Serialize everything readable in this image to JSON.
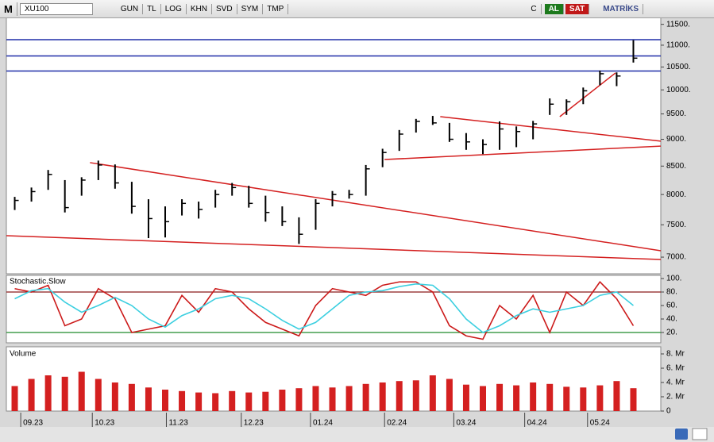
{
  "toolbar": {
    "symbol_icon": "M",
    "symbol": "XU100",
    "buttons": [
      "GUN",
      "TL",
      "LOG",
      "KHN",
      "SVD",
      "SYM",
      "TMP"
    ],
    "refresh": "C",
    "buy": "AL",
    "sell": "SAT",
    "brand": "MATRİKS"
  },
  "chart_data": [
    {
      "type": "ohlc",
      "color": "#000000",
      "log_scale": true,
      "high": [
        7960,
        8120,
        8430,
        8250,
        8300,
        8600,
        8530,
        8220,
        7920,
        7800,
        7920,
        7880,
        8080,
        8200,
        8150,
        7980,
        7800,
        7620,
        7920,
        8060,
        8080,
        8520,
        8820,
        9180,
        9400,
        9460,
        9320,
        9120,
        9000,
        9350,
        9250,
        9360,
        9820,
        9800,
        10050,
        10420,
        10380,
        11120
      ],
      "low": [
        7740,
        7880,
        8080,
        7700,
        7980,
        8250,
        8100,
        7680,
        7290,
        7300,
        7650,
        7600,
        7780,
        7980,
        7780,
        7550,
        7480,
        7200,
        7420,
        7800,
        7930,
        7980,
        8480,
        8780,
        9130,
        9280,
        8950,
        8800,
        8720,
        8800,
        8850,
        9000,
        9480,
        9480,
        9700,
        10100,
        10080,
        10600
      ],
      "close": [
        7900,
        8050,
        8350,
        7780,
        8250,
        8520,
        8200,
        7800,
        7600,
        7550,
        7850,
        7750,
        8000,
        8120,
        7850,
        7700,
        7550,
        7350,
        7850,
        8000,
        8000,
        8450,
        8750,
        9100,
        9350,
        9320,
        9000,
        8950,
        8900,
        9200,
        9150,
        9300,
        9700,
        9750,
        9980,
        10350,
        10300,
        10700
      ],
      "ylim": [
        6756,
        11670
      ],
      "yticks": [
        {
          "value": 7000,
          "label": "7000."
        },
        {
          "value": 7500,
          "label": "7500."
        },
        {
          "value": 8000,
          "label": "8000."
        },
        {
          "value": 8500,
          "label": "8500."
        },
        {
          "value": 9000,
          "label": "9000."
        },
        {
          "value": 9500,
          "label": "9500."
        },
        {
          "value": 10000,
          "label": "10000."
        },
        {
          "value": 10500,
          "label": "10500."
        },
        {
          "value": 11000,
          "label": "11000."
        },
        {
          "value": 11500,
          "label": "11500."
        }
      ],
      "hlines": [
        {
          "value": 11130,
          "color": "#1f2ea8"
        },
        {
          "value": 10750,
          "color": "#1f2ea8"
        },
        {
          "value": 10410,
          "color": "#1f2ea8"
        }
      ],
      "trendlines": [
        {
          "x": [
            4.5,
            38.64
          ],
          "y": [
            8563,
            7096
          ],
          "color": "#d42020"
        },
        {
          "x": [
            -0.5,
            38.64
          ],
          "y": [
            7327,
            6965
          ],
          "color": "#d42020"
        },
        {
          "x": [
            25.45,
            38.64
          ],
          "y": [
            9445,
            8964
          ],
          "color": "#d42020"
        },
        {
          "x": [
            22.12,
            38.64
          ],
          "y": [
            8620,
            8870
          ],
          "color": "#d42020"
        },
        {
          "x": [
            32.6,
            35.93
          ],
          "y": [
            9445,
            10368
          ],
          "color": "#d42020"
        }
      ]
    },
    {
      "type": "line",
      "title": "Stochastic.Slow",
      "series": [
        {
          "color": "#cc1a1a",
          "values": [
            85,
            80,
            90,
            30,
            40,
            85,
            70,
            20,
            25,
            30,
            75,
            50,
            85,
            80,
            55,
            35,
            25,
            15,
            60,
            85,
            80,
            75,
            90,
            95,
            95,
            80,
            30,
            15,
            10,
            60,
            40,
            75,
            20,
            80,
            60,
            95,
            70,
            30
          ]
        },
        {
          "color": "#3ccfe0",
          "values": [
            70,
            82,
            85,
            65,
            50,
            60,
            72,
            60,
            40,
            28,
            45,
            55,
            70,
            75,
            70,
            55,
            38,
            25,
            35,
            55,
            75,
            80,
            82,
            88,
            92,
            90,
            70,
            40,
            20,
            30,
            45,
            55,
            50,
            55,
            60,
            75,
            80,
            60
          ]
        }
      ],
      "ylim": [
        4.7,
        104.7
      ],
      "yticks": [
        {
          "value": 20,
          "label": "20."
        },
        {
          "value": 40,
          "label": "40."
        },
        {
          "value": 60,
          "label": "60."
        },
        {
          "value": 80,
          "label": "80."
        },
        {
          "value": 100,
          "label": "100."
        }
      ],
      "levels": [
        {
          "value": 80,
          "color": "#8b1a1a"
        },
        {
          "value": 20,
          "color": "#1f8a2a"
        }
      ]
    },
    {
      "type": "bar",
      "title": "Volume",
      "color": "#d42020",
      "x": [
        0,
        1,
        2,
        3,
        4,
        5,
        6,
        7,
        8,
        9,
        10,
        11,
        12,
        13,
        14,
        15,
        16,
        17,
        18,
        19,
        20,
        21,
        22,
        23,
        24,
        25,
        26,
        27,
        28,
        29,
        30,
        31,
        32,
        33,
        34,
        35,
        36,
        37
      ],
      "values": [
        3.5,
        4.5,
        5,
        4.8,
        5.5,
        4.5,
        4,
        3.8,
        3.3,
        3,
        2.8,
        2.6,
        2.5,
        2.8,
        2.6,
        2.7,
        3,
        3.2,
        3.5,
        3.3,
        3.5,
        3.8,
        4,
        4.2,
        4.3,
        5,
        4.5,
        3.7,
        3.5,
        3.8,
        3.6,
        4,
        3.8,
        3.4,
        3.3,
        3.6,
        4.2,
        3.2
      ],
      "ylim": [
        0,
        9
      ],
      "yticks": [
        0,
        {
          "value": 2,
          "label": "2. Mr"
        },
        {
          "value": 4,
          "label": "4. Mr"
        },
        {
          "value": 6,
          "label": "6. Mr"
        },
        {
          "value": 8,
          "label": "8. Mr"
        }
      ],
      "xlim": [
        -0.5,
        38.64
      ],
      "xticks": [
        {
          "value": 0.36,
          "label": "09.23"
        },
        {
          "value": 4.64,
          "label": "10.23"
        },
        {
          "value": 9.07,
          "label": "11.23"
        },
        {
          "value": 13.55,
          "label": "12.23"
        },
        {
          "value": 17.69,
          "label": "01.24"
        },
        {
          "value": 22.12,
          "label": "02.24"
        },
        {
          "value": 26.26,
          "label": "03.24"
        },
        {
          "value": 30.5,
          "label": "04.24"
        },
        {
          "value": 34.26,
          "label": "05.24"
        }
      ]
    }
  ]
}
